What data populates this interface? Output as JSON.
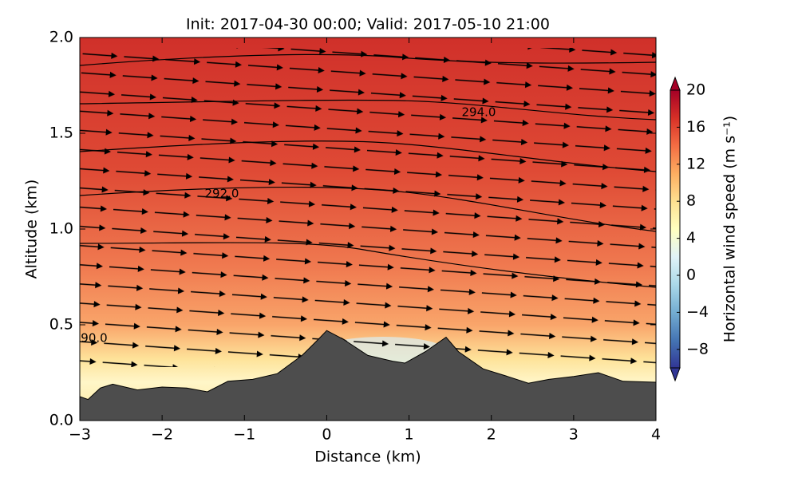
{
  "chart_data": {
    "type": "terrain-section",
    "title": "Init: 2017-04-30 00:00; Valid: 2017-05-10 21:00",
    "x_label": "Distance (km)",
    "y_label": "Altitude (km)",
    "xlim": [
      -3,
      4
    ],
    "ylim": [
      0,
      2
    ],
    "xticks": [
      {
        "value": -3,
        "label": "−3"
      },
      {
        "value": -2,
        "label": "−2"
      },
      {
        "value": -1,
        "label": "−1"
      },
      0,
      1,
      2,
      3,
      4
    ],
    "yticks": [
      {
        "value": 0,
        "label": "0.0"
      },
      {
        "value": 0.5,
        "label": "0.5"
      },
      {
        "value": 1,
        "label": "1.0"
      },
      {
        "value": 1.5,
        "label": "1.5"
      },
      {
        "value": 2,
        "label": "2.0"
      }
    ],
    "terrain": {
      "color": "#4d4d4d",
      "x": [
        -3,
        -2.9,
        -2.75,
        -2.6,
        -2.3,
        -2.0,
        -1.7,
        -1.45,
        -1.2,
        -0.9,
        -0.6,
        -0.3,
        -0.1,
        0.0,
        0.2,
        0.5,
        0.8,
        0.95,
        1.2,
        1.45,
        1.6,
        1.9,
        2.2,
        2.45,
        2.7,
        3.0,
        3.3,
        3.6,
        4.0
      ],
      "values": [
        0.125,
        0.11,
        0.17,
        0.19,
        0.16,
        0.175,
        0.17,
        0.15,
        0.205,
        0.215,
        0.245,
        0.34,
        0.425,
        0.47,
        0.425,
        0.34,
        0.31,
        0.3,
        0.36,
        0.435,
        0.36,
        0.27,
        0.23,
        0.195,
        0.215,
        0.23,
        0.25,
        0.205,
        0.2
      ]
    },
    "annotations": [
      "294.0",
      "292.0",
      "90.0"
    ],
    "colorbar": {
      "label": "Horizontal wind speed (m s⁻¹)",
      "lim": [
        -10,
        20
      ],
      "ticks": [
        {
          "value": -8,
          "label": "−8"
        },
        {
          "value": -4,
          "label": "−4"
        },
        0,
        4,
        8,
        12,
        16,
        20
      ],
      "colors": [
        "#313695",
        "#4575b4",
        "#74add1",
        "#abd9e9",
        "#e0f3f8",
        "#ffffbf",
        "#fee090",
        "#fdae61",
        "#f46d43",
        "#d73027",
        "#a50026"
      ]
    }
  }
}
